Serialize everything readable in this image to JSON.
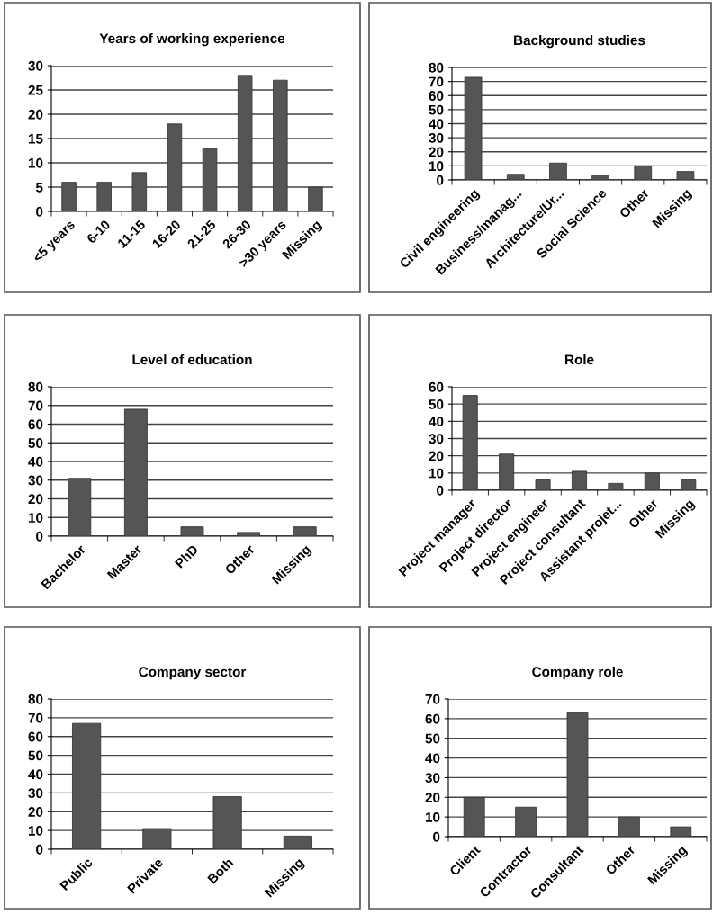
{
  "chart_data": [
    {
      "type": "bar",
      "title": "Years of working experience",
      "categories": [
        "<5 years",
        "6-10",
        "11-15",
        "16-20",
        "21-25",
        "26-30",
        ">30 years",
        "Missing"
      ],
      "values": [
        6,
        6,
        8,
        18,
        13,
        28,
        27,
        5
      ],
      "color": "#555555",
      "ylim": [
        0,
        30
      ],
      "yticks": [
        0,
        5,
        10,
        15,
        20,
        25,
        30
      ],
      "grid": "y",
      "legend": false
    },
    {
      "type": "bar",
      "title": "Background studies",
      "categories": [
        "Civil engineering",
        "Business/manag...",
        "Architecture/Ur...",
        "Social Science",
        "Other",
        "Missing"
      ],
      "values": [
        73,
        4,
        12,
        3,
        10,
        6
      ],
      "color": "#555555",
      "ylim": [
        0,
        80
      ],
      "yticks": [
        0,
        10,
        20,
        30,
        40,
        50,
        60,
        70,
        80
      ],
      "grid": "y",
      "legend": false
    },
    {
      "type": "bar",
      "title": "Level of education",
      "categories": [
        "Bachelor",
        "Master",
        "PhD",
        "Other",
        "Missing"
      ],
      "values": [
        31,
        68,
        5,
        2,
        5
      ],
      "color": "#555555",
      "ylim": [
        0,
        80
      ],
      "yticks": [
        0,
        10,
        20,
        30,
        40,
        50,
        60,
        70,
        80
      ],
      "grid": "y",
      "legend": false
    },
    {
      "type": "bar",
      "title": "Role",
      "categories": [
        "Project manager",
        "Project director",
        "Project engineer",
        "Project consultant",
        "Assistant projet...",
        "Other",
        "Missing"
      ],
      "values": [
        55,
        21,
        6,
        11,
        4,
        10,
        6
      ],
      "color": "#555555",
      "ylim": [
        0,
        60
      ],
      "yticks": [
        0,
        10,
        20,
        30,
        40,
        50,
        60
      ],
      "grid": "y",
      "legend": false
    },
    {
      "type": "bar",
      "title": "Company sector",
      "categories": [
        "Public",
        "Private",
        "Both",
        "Missing"
      ],
      "values": [
        67,
        11,
        28,
        7
      ],
      "color": "#555555",
      "ylim": [
        0,
        80
      ],
      "yticks": [
        0,
        10,
        20,
        30,
        40,
        50,
        60,
        70,
        80
      ],
      "grid": "y",
      "legend": false
    },
    {
      "type": "bar",
      "title": "Company role",
      "categories": [
        "Client",
        "Contractor",
        "Consultant",
        "Other",
        "Missing"
      ],
      "values": [
        20,
        15,
        63,
        10,
        5
      ],
      "color": "#555555",
      "ylim": [
        0,
        70
      ],
      "yticks": [
        0,
        10,
        20,
        30,
        40,
        50,
        60,
        70
      ],
      "grid": "y",
      "legend": false
    }
  ]
}
